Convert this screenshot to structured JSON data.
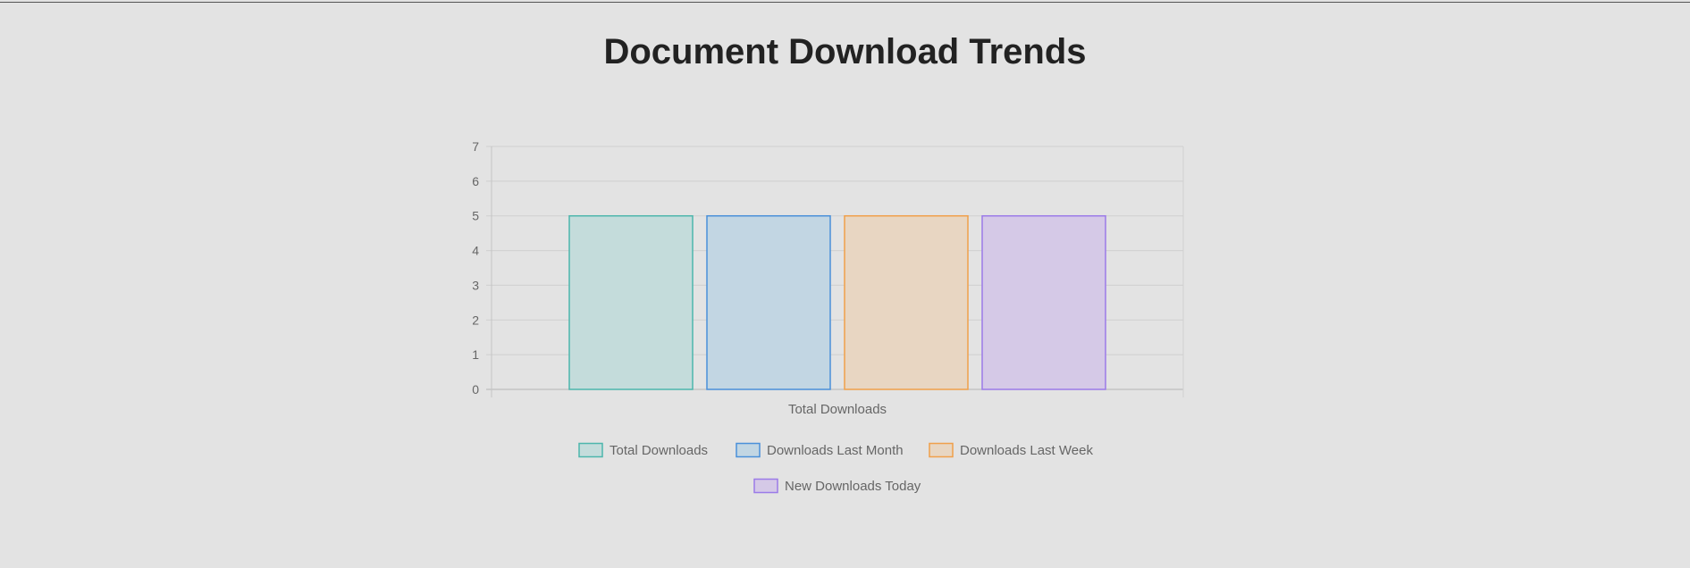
{
  "page": {
    "title": "Document Download Trends"
  },
  "chart_data": {
    "type": "bar",
    "categories": [
      "Total Downloads"
    ],
    "series": [
      {
        "name": "Total Downloads",
        "values": [
          5
        ],
        "border": "#4db6ac",
        "fill": "#c4dcdb"
      },
      {
        "name": "Downloads Last Month",
        "values": [
          5
        ],
        "border": "#4a90d9",
        "fill": "#c2d6e3"
      },
      {
        "name": "Downloads Last Week",
        "values": [
          5
        ],
        "border": "#f0a04b",
        "fill": "#e8d6c2"
      },
      {
        "name": "New Downloads Today",
        "values": [
          5
        ],
        "border": "#9b7be8",
        "fill": "#d5c9e7"
      }
    ],
    "ylim": [
      0,
      7
    ],
    "yticks": [
      0,
      1,
      2,
      3,
      4,
      5,
      6,
      7
    ],
    "grid": true,
    "legend": "bottom"
  }
}
